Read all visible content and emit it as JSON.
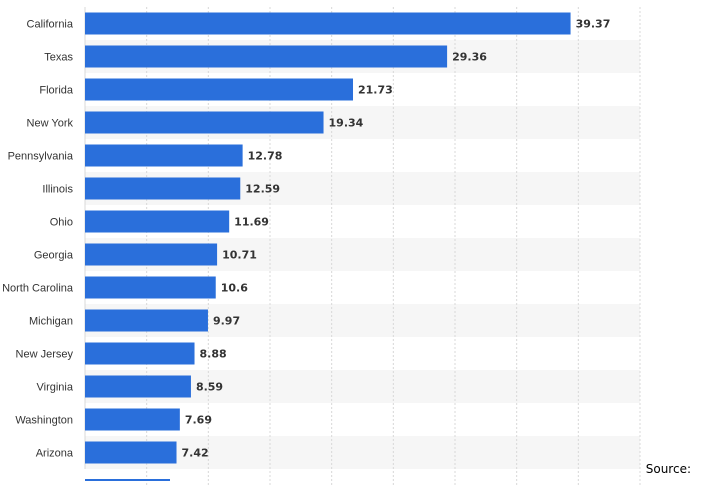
{
  "chart_data": {
    "type": "bar",
    "orientation": "horizontal",
    "categories": [
      "California",
      "Texas",
      "Florida",
      "New York",
      "Pennsylvania",
      "Illinois",
      "Ohio",
      "Georgia",
      "North Carolina",
      "Michigan",
      "New Jersey",
      "Virginia",
      "Washington",
      "Arizona"
    ],
    "values": [
      39.37,
      29.36,
      21.73,
      19.34,
      12.78,
      12.59,
      11.69,
      10.71,
      10.6,
      9.97,
      8.88,
      8.59,
      7.69,
      7.42
    ],
    "value_labels": [
      "39.37",
      "29.36",
      "21.73",
      "19.34",
      "12.78",
      "12.59",
      "11.69",
      "10.71",
      "10.6",
      "9.97",
      "8.88",
      "8.59",
      "7.69",
      "7.42"
    ],
    "xlim": [
      0,
      45
    ],
    "grid": true,
    "bar_color": "#2a6fdb",
    "band_color": "#f6f6f6",
    "grid_color": "#d8d8d8"
  },
  "footer": {
    "source_label": "Source:"
  }
}
